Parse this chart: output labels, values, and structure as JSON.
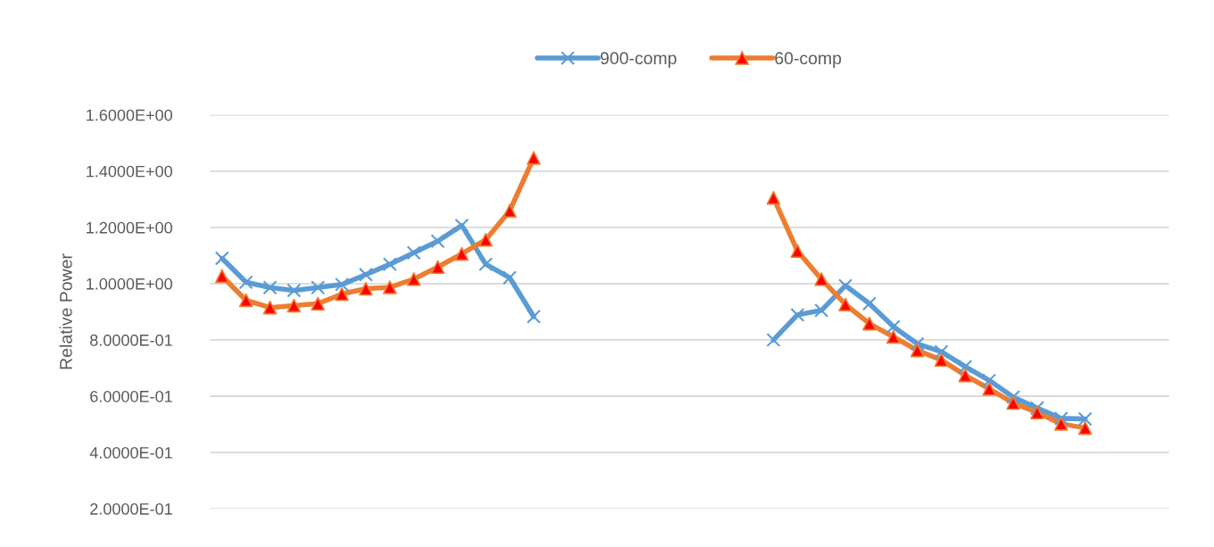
{
  "chart_data": {
    "type": "line",
    "ylabel": "Relative Power",
    "categories": [
      null,
      null,
      null,
      null,
      null,
      null,
      null,
      null,
      null,
      null,
      null,
      null,
      null,
      null,
      null,
      null,
      null,
      null,
      null,
      null,
      null,
      null,
      null,
      null,
      null,
      null,
      null,
      null,
      null,
      null,
      null,
      null,
      null,
      null,
      null,
      null,
      null,
      null,
      null,
      null
    ],
    "series": [
      {
        "name": "900-comp",
        "color": "#5b9bd5",
        "marker": "cross",
        "values": [
          1.09,
          1.005,
          0.986,
          0.976,
          0.986,
          0.997,
          1.032,
          1.069,
          1.11,
          1.151,
          1.207,
          1.069,
          1.021,
          0.883,
          null,
          null,
          null,
          null,
          null,
          null,
          null,
          null,
          null,
          0.8,
          0.889,
          0.905,
          0.993,
          0.929,
          0.847,
          0.786,
          0.758,
          0.705,
          0.656,
          0.597,
          0.558,
          0.521,
          0.519,
          null,
          null,
          null
        ]
      },
      {
        "name": "60-comp",
        "color": "#ed7d31",
        "marker": "triangle",
        "values": [
          1.027,
          0.941,
          0.915,
          0.922,
          0.929,
          0.963,
          0.982,
          0.987,
          1.016,
          1.059,
          1.106,
          1.156,
          1.259,
          1.447,
          null,
          null,
          null,
          null,
          null,
          null,
          null,
          null,
          null,
          1.305,
          1.116,
          1.016,
          0.926,
          0.858,
          0.811,
          0.763,
          0.729,
          0.674,
          0.626,
          0.576,
          0.542,
          0.502,
          0.487,
          null,
          null,
          null
        ]
      }
    ],
    "ylim": [
      0.2,
      1.6
    ],
    "yticks": [
      {
        "value": 0.2,
        "label": "2.0000E-01"
      },
      {
        "value": 0.4,
        "label": "4.0000E-01"
      },
      {
        "value": 0.6,
        "label": "6.0000E-01"
      },
      {
        "value": 0.8,
        "label": "8.0000E-01"
      },
      {
        "value": 1.0,
        "label": "1.0000E+00"
      },
      {
        "value": 1.2,
        "label": "1.2000E+00"
      },
      {
        "value": 1.4,
        "label": "1.4000E+00"
      },
      {
        "value": 1.6,
        "label": "1.6000E+00"
      }
    ],
    "grid": "y",
    "legend": "top",
    "tick_labels": "y",
    "line_style": "solid"
  }
}
